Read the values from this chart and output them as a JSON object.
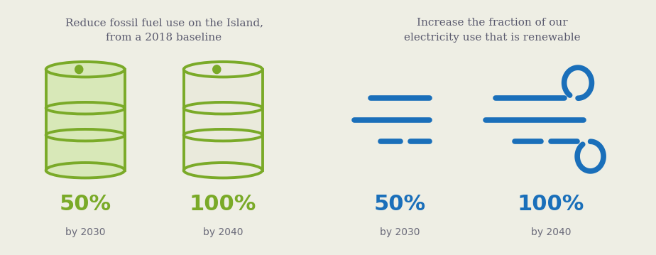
{
  "left_bg": "#eeeee4",
  "right_bg": "#c5e8f0",
  "left_title": "Reduce fossil fuel use on the Island,\nfrom a 2018 baseline",
  "right_title": "Increase the fraction of our\nelectricity use that is renewable",
  "title_color": "#5a5a6e",
  "left_pct1": "50%",
  "left_pct2": "100%",
  "left_year1": "by 2030",
  "left_year2": "by 2040",
  "right_pct1": "50%",
  "right_pct2": "100%",
  "right_year1": "by 2030",
  "right_year2": "by 2040",
  "pct_color_green": "#7aaa28",
  "pct_color_blue": "#1a6fba",
  "year_color": "#6b6b7a",
  "barrel_outline": "#7aaa28",
  "barrel_fill_left": "#d8e8b8",
  "barrel_fill_right": "#eaeadc",
  "wind_color": "#1a6fba",
  "title_fontsize": 11,
  "pct_fontsize": 22,
  "year_fontsize": 10
}
